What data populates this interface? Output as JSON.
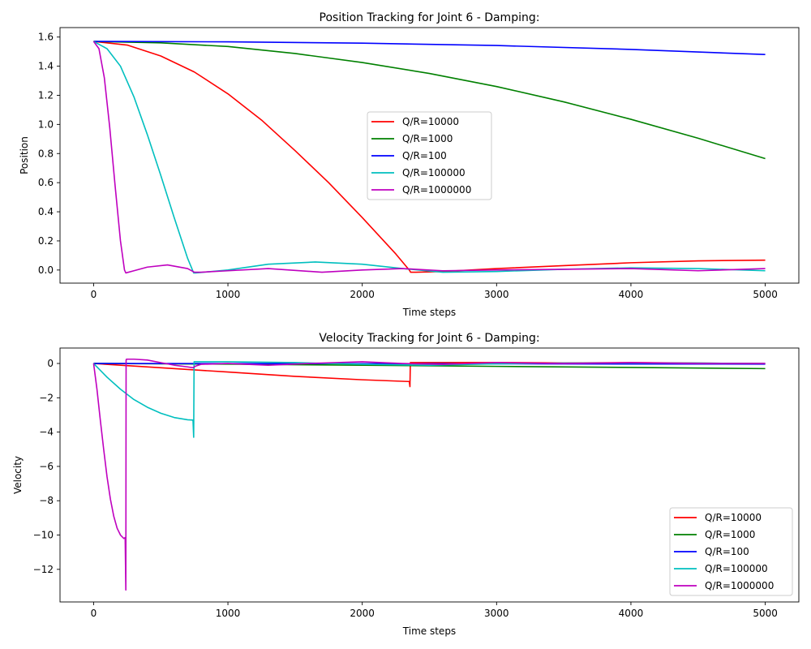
{
  "chart_data": [
    {
      "type": "line",
      "title": "Position Tracking for Joint 6 - Damping:",
      "xlabel": "Time steps",
      "ylabel": "Position",
      "xlim": [
        -250,
        5250
      ],
      "ylim": [
        -0.09,
        1.665
      ],
      "xticks": [
        0,
        1000,
        2000,
        3000,
        4000,
        5000
      ],
      "yticks": [
        0.0,
        0.2,
        0.4,
        0.6,
        0.8,
        1.0,
        1.2,
        1.4,
        1.6
      ],
      "ytick_decimals": 1,
      "grid": false,
      "legend_position": "center",
      "series": [
        {
          "name": "Q/R=10000",
          "color": "#ff0000",
          "x": [
            0,
            250,
            500,
            750,
            1000,
            1250,
            1500,
            1750,
            2000,
            2250,
            2350,
            2360,
            2400,
            2600,
            3000,
            3500,
            4000,
            4500,
            5000
          ],
          "y": [
            1.57,
            1.545,
            1.47,
            1.36,
            1.21,
            1.03,
            0.82,
            0.6,
            0.36,
            0.11,
            0.0,
            -0.015,
            -0.015,
            -0.01,
            0.01,
            0.03,
            0.05,
            0.063,
            0.068
          ]
        },
        {
          "name": "Q/R=1000",
          "color": "#008000",
          "x": [
            0,
            500,
            1000,
            1500,
            2000,
            2500,
            3000,
            3500,
            4000,
            4500,
            5000
          ],
          "y": [
            1.57,
            1.56,
            1.535,
            1.487,
            1.425,
            1.35,
            1.26,
            1.155,
            1.035,
            0.905,
            0.765
          ]
        },
        {
          "name": "Q/R=100",
          "color": "#0000ff",
          "x": [
            0,
            1000,
            2000,
            3000,
            4000,
            5000
          ],
          "y": [
            1.57,
            1.567,
            1.558,
            1.542,
            1.515,
            1.48
          ]
        },
        {
          "name": "Q/R=100000",
          "color": "#00bfbf",
          "x": [
            0,
            100,
            200,
            300,
            400,
            500,
            600,
            700,
            745,
            760,
            1000,
            1300,
            1650,
            2000,
            2300,
            2600,
            3000,
            3500,
            4000,
            4500,
            5000
          ],
          "y": [
            1.57,
            1.52,
            1.4,
            1.19,
            0.93,
            0.65,
            0.36,
            0.08,
            -0.02,
            -0.02,
            0.0,
            0.04,
            0.055,
            0.04,
            0.01,
            -0.015,
            -0.01,
            0.005,
            0.015,
            0.01,
            -0.005
          ]
        },
        {
          "name": "Q/R=1000000",
          "color": "#bf00bf",
          "x": [
            0,
            40,
            80,
            120,
            160,
            200,
            230,
            240,
            300,
            400,
            550,
            700,
            750,
            800,
            1000,
            1300,
            1700,
            2000,
            2300,
            2600,
            3000,
            3500,
            4000,
            4500,
            5000
          ],
          "y": [
            1.57,
            1.52,
            1.32,
            0.98,
            0.58,
            0.2,
            0.0,
            -0.02,
            -0.005,
            0.02,
            0.035,
            0.01,
            -0.015,
            -0.015,
            -0.005,
            0.01,
            -0.015,
            0.0,
            0.01,
            -0.005,
            0.0,
            0.005,
            0.01,
            -0.005,
            0.01
          ]
        }
      ]
    },
    {
      "type": "line",
      "title": "Velocity Tracking for Joint 6 - Damping:",
      "xlabel": "Time steps",
      "ylabel": "Velocity",
      "xlim": [
        -250,
        5250
      ],
      "ylim": [
        -13.9,
        0.9
      ],
      "xticks": [
        0,
        1000,
        2000,
        3000,
        4000,
        5000
      ],
      "yticks": [
        0,
        -2,
        -4,
        -6,
        -8,
        -10,
        -12
      ],
      "ytick_decimals": 0,
      "grid": false,
      "legend_position": "lower right",
      "series": [
        {
          "name": "Q/R=10000",
          "color": "#ff0000",
          "x": [
            0,
            500,
            1000,
            1500,
            2000,
            2340,
            2350,
            2355,
            2358,
            2360,
            2600,
            3000,
            3500,
            4000,
            4500,
            5000
          ],
          "y": [
            0,
            -0.25,
            -0.5,
            -0.75,
            -0.95,
            -1.05,
            -1.05,
            -1.35,
            0.05,
            0.05,
            0.05,
            0.06,
            0.03,
            0.05,
            0.02,
            0.0
          ]
        },
        {
          "name": "Q/R=1000",
          "color": "#008000",
          "x": [
            0,
            1000,
            2000,
            3000,
            4000,
            5000
          ],
          "y": [
            0,
            -0.04,
            -0.1,
            -0.17,
            -0.23,
            -0.3
          ]
        },
        {
          "name": "Q/R=100",
          "color": "#0000ff",
          "x": [
            0,
            1000,
            2000,
            3000,
            4000,
            5000
          ],
          "y": [
            0,
            -0.005,
            -0.01,
            -0.02,
            -0.03,
            -0.035
          ]
        },
        {
          "name": "Q/R=100000",
          "color": "#00bfbf",
          "x": [
            0,
            100,
            200,
            300,
            400,
            500,
            600,
            700,
            740,
            745,
            748,
            760,
            1000,
            1500,
            2000,
            2500,
            3000,
            3500,
            4000,
            4500,
            5000
          ],
          "y": [
            0,
            -0.8,
            -1.5,
            -2.1,
            -2.55,
            -2.9,
            -3.15,
            -3.28,
            -3.3,
            -4.3,
            0.1,
            0.1,
            0.1,
            0.05,
            -0.05,
            -0.1,
            -0.02,
            0.02,
            0.03,
            0.02,
            0.0
          ]
        },
        {
          "name": "Q/R=1000000",
          "color": "#bf00bf",
          "x": [
            0,
            25,
            50,
            75,
            100,
            125,
            150,
            175,
            200,
            225,
            235,
            240,
            242,
            245,
            300,
            400,
            500,
            600,
            700,
            740,
            760,
            800,
            1000,
            1300,
            1600,
            2000,
            2300,
            2600,
            3000,
            3500,
            4000,
            4500,
            5000
          ],
          "y": [
            0,
            -1.5,
            -3.3,
            -5.0,
            -6.6,
            -7.9,
            -8.9,
            -9.6,
            -10.0,
            -10.2,
            -10.15,
            -13.2,
            0.2,
            0.25,
            0.25,
            0.2,
            0.05,
            -0.1,
            -0.2,
            -0.25,
            -0.15,
            -0.05,
            0.0,
            -0.1,
            0.0,
            0.1,
            0.0,
            -0.05,
            0.05,
            0.0,
            0.05,
            0.0,
            0.0
          ]
        }
      ]
    }
  ]
}
